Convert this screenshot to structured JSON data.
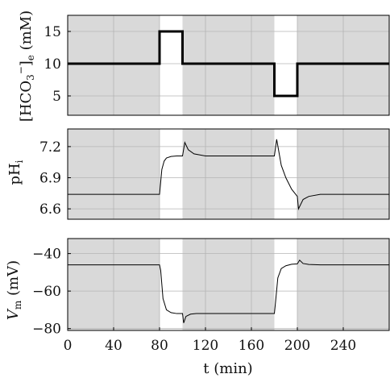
{
  "chart_data": [
    {
      "type": "line",
      "panel": "bicarbonate",
      "ylabel_main": "[HCO",
      "ylabel_sub": "3",
      "ylabel_sup": "−",
      "ylabel_tail": "]",
      "ylabel_sub2": "e",
      "ylabel_unit": " (mM)",
      "ylim": [
        2,
        17.5
      ],
      "yticks": [
        5,
        10,
        15
      ],
      "ytick_labels": [
        "5",
        "10",
        "15"
      ],
      "grid": true,
      "series": [
        {
          "x": [
            0,
            80,
            80,
            100,
            100,
            180,
            180,
            200,
            200,
            280
          ],
          "y": [
            10,
            10,
            15,
            15,
            10,
            10,
            5,
            5,
            10,
            10
          ]
        }
      ]
    },
    {
      "type": "line",
      "panel": "pHi",
      "ylabel_main": "pH",
      "ylabel_sub": "i",
      "ylim": [
        6.5,
        7.37
      ],
      "yticks": [
        6.6,
        6.9,
        7.2
      ],
      "ytick_labels": [
        "6.6",
        "6.9",
        "7.2"
      ],
      "grid": true,
      "series": [
        {
          "x": [
            0,
            80,
            82,
            84,
            86,
            90,
            95,
            100,
            102,
            105,
            110,
            120,
            140,
            180,
            182,
            186,
            190,
            195,
            200,
            201,
            205,
            210,
            220,
            240,
            280
          ],
          "y": [
            6.74,
            6.74,
            6.98,
            7.06,
            7.09,
            7.105,
            7.11,
            7.11,
            7.24,
            7.17,
            7.13,
            7.11,
            7.11,
            7.11,
            7.27,
            7.02,
            6.9,
            6.79,
            6.72,
            6.6,
            6.69,
            6.72,
            6.74,
            6.74,
            6.74
          ]
        }
      ]
    },
    {
      "type": "line",
      "panel": "Vm",
      "ylabel_main": "V",
      "ylabel_sub": "m",
      "ylabel_unit": " (mV)",
      "ylim": [
        -81,
        -32
      ],
      "yticks": [
        -80,
        -60,
        -40
      ],
      "ytick_labels": [
        "−80",
        "−60",
        "−40"
      ],
      "xlabel": "t (min)",
      "xlim": [
        0,
        280
      ],
      "xticks": [
        0,
        40,
        80,
        120,
        160,
        200,
        240
      ],
      "xtick_labels": [
        "0",
        "40",
        "80",
        "120",
        "160",
        "200",
        "240"
      ],
      "grid": true,
      "series": [
        {
          "x": [
            0,
            80,
            81,
            83,
            86,
            90,
            95,
            100,
            101,
            103,
            107,
            112,
            120,
            140,
            180,
            181,
            183,
            186,
            190,
            195,
            200,
            202,
            205,
            210,
            220,
            280
          ],
          "y": [
            -46,
            -46,
            -49,
            -64,
            -70,
            -71.5,
            -72,
            -72,
            -77,
            -73.5,
            -72.3,
            -72,
            -72,
            -72,
            -72,
            -66,
            -53,
            -48,
            -46.5,
            -45.7,
            -45.5,
            -43.5,
            -45.3,
            -45.8,
            -46,
            -46
          ]
        }
      ]
    }
  ],
  "shading": {
    "color": "#d9d9d9",
    "intervals": [
      [
        0,
        80
      ],
      [
        100,
        180
      ],
      [
        200,
        280
      ]
    ]
  }
}
